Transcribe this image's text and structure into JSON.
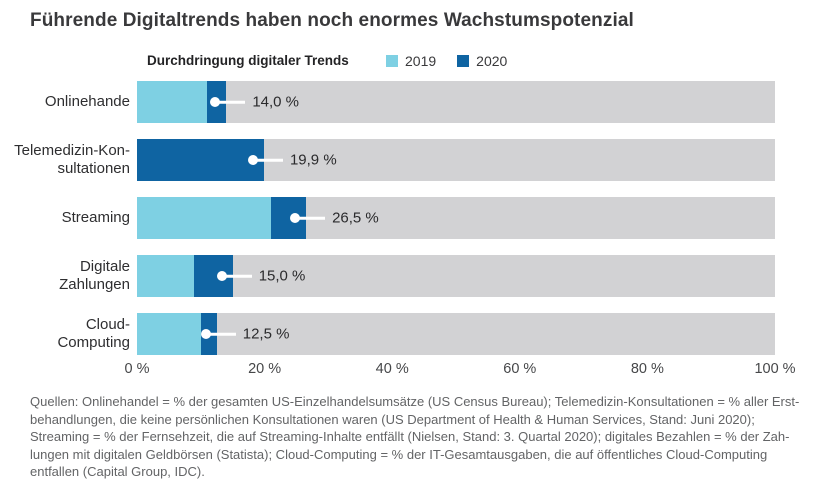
{
  "title": "Führende Digitaltrends haben noch enormes Wachstumspotenzial",
  "legend": {
    "title": "Durchdringung digitaler Trends",
    "items": [
      {
        "label": "2019",
        "color": "#7ed0e3"
      },
      {
        "label": "2020",
        "color": "#0f64a2"
      }
    ]
  },
  "colors": {
    "track": "#d2d2d4",
    "light": "#7ed0e3",
    "dark": "#0f64a2",
    "callout": "#ffffff"
  },
  "chart_data": {
    "type": "bar",
    "orientation": "horizontal",
    "title": "Durchdringung digitaler Trends",
    "categories": [
      "Onlinehande",
      "Telemedizin-Kon-\nsultationen",
      "Streaming",
      "Digitale\nZahlungen",
      "Cloud-\nComputing"
    ],
    "series": [
      {
        "name": "2019",
        "values": [
          11.0,
          0.0,
          21.0,
          9.0,
          10.0
        ]
      },
      {
        "name": "2020",
        "values": [
          14.0,
          19.9,
          26.5,
          15.0,
          12.5
        ]
      }
    ],
    "value_labels": [
      "14,0 %",
      "19,9 %",
      "26,5 %",
      "15,0 %",
      "12,5 %"
    ],
    "x_ticks": [
      "0 %",
      "20 %",
      "40 %",
      "60 %",
      "80 %",
      "100 %"
    ],
    "xlim": [
      0,
      100
    ],
    "grid": false,
    "legend_position": "top"
  },
  "footer": {
    "lines": [
      "Quellen: Onlinehandel = % der gesamten US-Einzelhandelsumsätze (US Census Bureau); Telemedizin-Konsultationen = % aller Erst-",
      "behandlungen, die keine persönlichen Konsultationen waren (US Department of Health & Human Services, Stand: Juni 2020);",
      "Streaming = % der Fernsehzeit, die auf Streaming-Inhalte entfällt (Nielsen, Stand: 3. Quartal 2020); digitales Bezahlen = % der Zah-",
      "lungen mit digitalen Geldbörsen (Statista); Cloud-Computing = % der IT-Gesamtausgaben, die auf öffentliches Cloud-Computing",
      "entfallen (Capital Group, IDC)."
    ]
  }
}
